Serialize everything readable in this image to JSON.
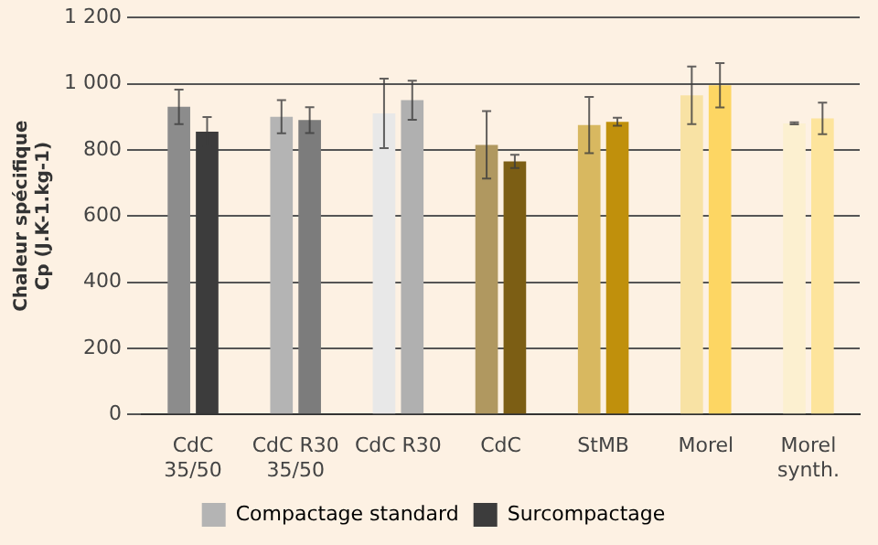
{
  "chart_data": {
    "type": "bar",
    "ylabel": "Chaleur spécifique\nCp (J.K-1.kg-1)",
    "categories": [
      "CdC\n35/50",
      "CdC R30\n35/50",
      "CdC R30",
      "CdC",
      "StMB",
      "Morel",
      "Morel\nsynth."
    ],
    "series": [
      {
        "name": "Compactage standard",
        "color": "#b4b4b4",
        "colors": [
          "#8c8c8c",
          "#b4b4b4",
          "#e8e8e8",
          "#b09860",
          "#d8b860",
          "#f8e2a4",
          "#fcf0d0"
        ],
        "values": [
          930,
          900,
          910,
          815,
          875,
          965,
          880
        ],
        "errors": [
          52,
          50,
          105,
          102,
          85,
          87,
          3
        ]
      },
      {
        "name": "Surcompactage",
        "color": "#3c3c3c",
        "colors": [
          "#3c3c3c",
          "#7c7c7c",
          "#b0b0b0",
          "#7c5e14",
          "#c0900c",
          "#fdd663",
          "#fde49c"
        ],
        "values": [
          855,
          890,
          950,
          765,
          885,
          995,
          895
        ],
        "errors": [
          44,
          39,
          59,
          20,
          12,
          67,
          48
        ]
      }
    ],
    "ylim": [
      0,
      1200
    ],
    "yticks": [
      0,
      200,
      400,
      600,
      800,
      {
        "value": 1000,
        "label": "1 000"
      },
      {
        "value": 1200,
        "label": "1 200"
      }
    ],
    "grid": "y",
    "legend": "bottom"
  }
}
